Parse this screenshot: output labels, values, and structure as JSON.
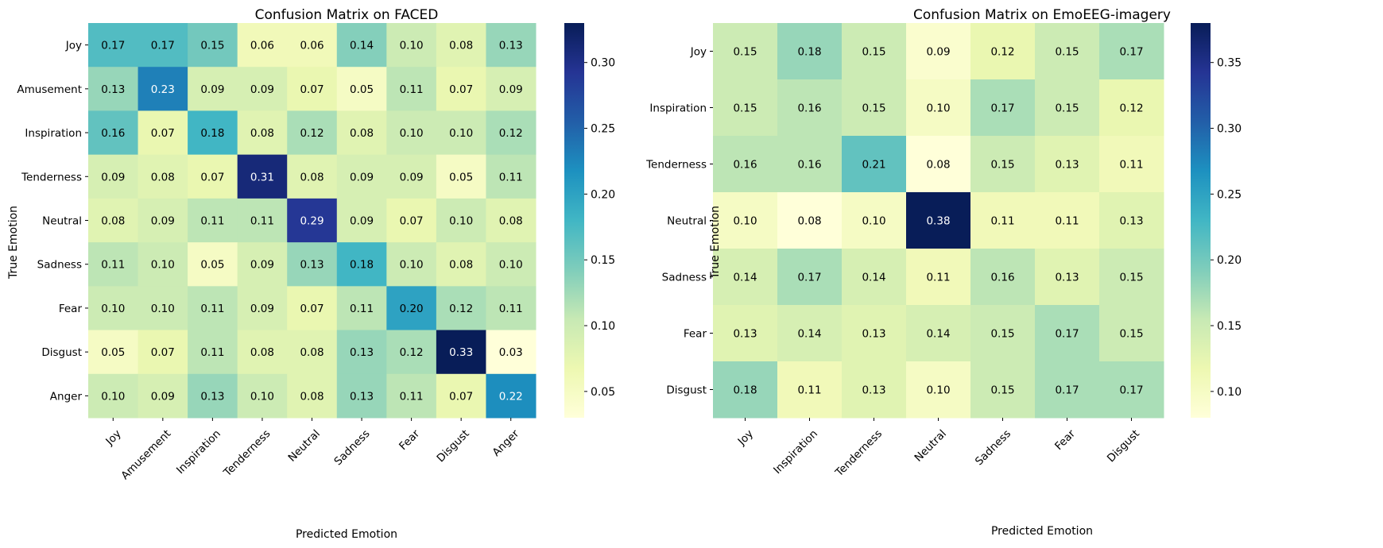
{
  "colormap": [
    "#ffffd9",
    "#edf8b1",
    "#c7e9b4",
    "#7fcdbb",
    "#41b6c4",
    "#1d91c0",
    "#225ea8",
    "#253494",
    "#081d58"
  ],
  "chart_data": [
    {
      "type": "heatmap",
      "title": "Confusion Matrix on FACED",
      "xlabel": "Predicted Emotion",
      "ylabel": "True Emotion",
      "x_categories": [
        "Joy",
        "Amusement",
        "Inspiration",
        "Tenderness",
        "Neutral",
        "Sadness",
        "Fear",
        "Disgust",
        "Anger"
      ],
      "y_categories": [
        "Joy",
        "Amusement",
        "Inspiration",
        "Tenderness",
        "Neutral",
        "Sadness",
        "Fear",
        "Disgust",
        "Anger"
      ],
      "values": [
        [
          0.17,
          0.17,
          0.15,
          0.06,
          0.06,
          0.14,
          0.1,
          0.08,
          0.13
        ],
        [
          0.13,
          0.23,
          0.09,
          0.09,
          0.07,
          0.05,
          0.11,
          0.07,
          0.09
        ],
        [
          0.16,
          0.07,
          0.18,
          0.08,
          0.12,
          0.08,
          0.1,
          0.1,
          0.12
        ],
        [
          0.09,
          0.08,
          0.07,
          0.31,
          0.08,
          0.09,
          0.09,
          0.05,
          0.11
        ],
        [
          0.08,
          0.09,
          0.11,
          0.11,
          0.29,
          0.09,
          0.07,
          0.1,
          0.08
        ],
        [
          0.11,
          0.1,
          0.05,
          0.09,
          0.13,
          0.18,
          0.1,
          0.08,
          0.1
        ],
        [
          0.1,
          0.1,
          0.11,
          0.09,
          0.07,
          0.11,
          0.2,
          0.12,
          0.11
        ],
        [
          0.05,
          0.07,
          0.11,
          0.08,
          0.08,
          0.13,
          0.12,
          0.33,
          0.03
        ],
        [
          0.1,
          0.09,
          0.13,
          0.1,
          0.08,
          0.13,
          0.11,
          0.07,
          0.22
        ]
      ],
      "vmin": 0.03,
      "vmax": 0.33,
      "colorbar_ticks": [
        0.05,
        0.1,
        0.15,
        0.2,
        0.25,
        0.3
      ],
      "colorbar_tick_labels": [
        "0.05",
        "0.10",
        "0.15",
        "0.20",
        "0.25",
        "0.30"
      ]
    },
    {
      "type": "heatmap",
      "title": "Confusion Matrix on EmoEEG-imagery",
      "xlabel": "Predicted Emotion",
      "ylabel": "True Emotion",
      "x_categories": [
        "Joy",
        "Inspiration",
        "Tenderness",
        "Neutral",
        "Sadness",
        "Fear",
        "Disgust"
      ],
      "y_categories": [
        "Joy",
        "Inspiration",
        "Tenderness",
        "Neutral",
        "Sadness",
        "Fear",
        "Disgust"
      ],
      "values": [
        [
          0.15,
          0.18,
          0.15,
          0.09,
          0.12,
          0.15,
          0.17
        ],
        [
          0.15,
          0.16,
          0.15,
          0.1,
          0.17,
          0.15,
          0.12
        ],
        [
          0.16,
          0.16,
          0.21,
          0.08,
          0.15,
          0.13,
          0.11
        ],
        [
          0.1,
          0.08,
          0.1,
          0.38,
          0.11,
          0.11,
          0.13
        ],
        [
          0.14,
          0.17,
          0.14,
          0.11,
          0.16,
          0.13,
          0.15
        ],
        [
          0.13,
          0.14,
          0.13,
          0.14,
          0.15,
          0.17,
          0.15
        ],
        [
          0.18,
          0.11,
          0.13,
          0.1,
          0.15,
          0.17,
          0.17
        ]
      ],
      "vmin": 0.08,
      "vmax": 0.38,
      "colorbar_ticks": [
        0.1,
        0.15,
        0.2,
        0.25,
        0.3,
        0.35
      ],
      "colorbar_tick_labels": [
        "0.10",
        "0.15",
        "0.20",
        "0.25",
        "0.30",
        "0.35"
      ]
    }
  ]
}
